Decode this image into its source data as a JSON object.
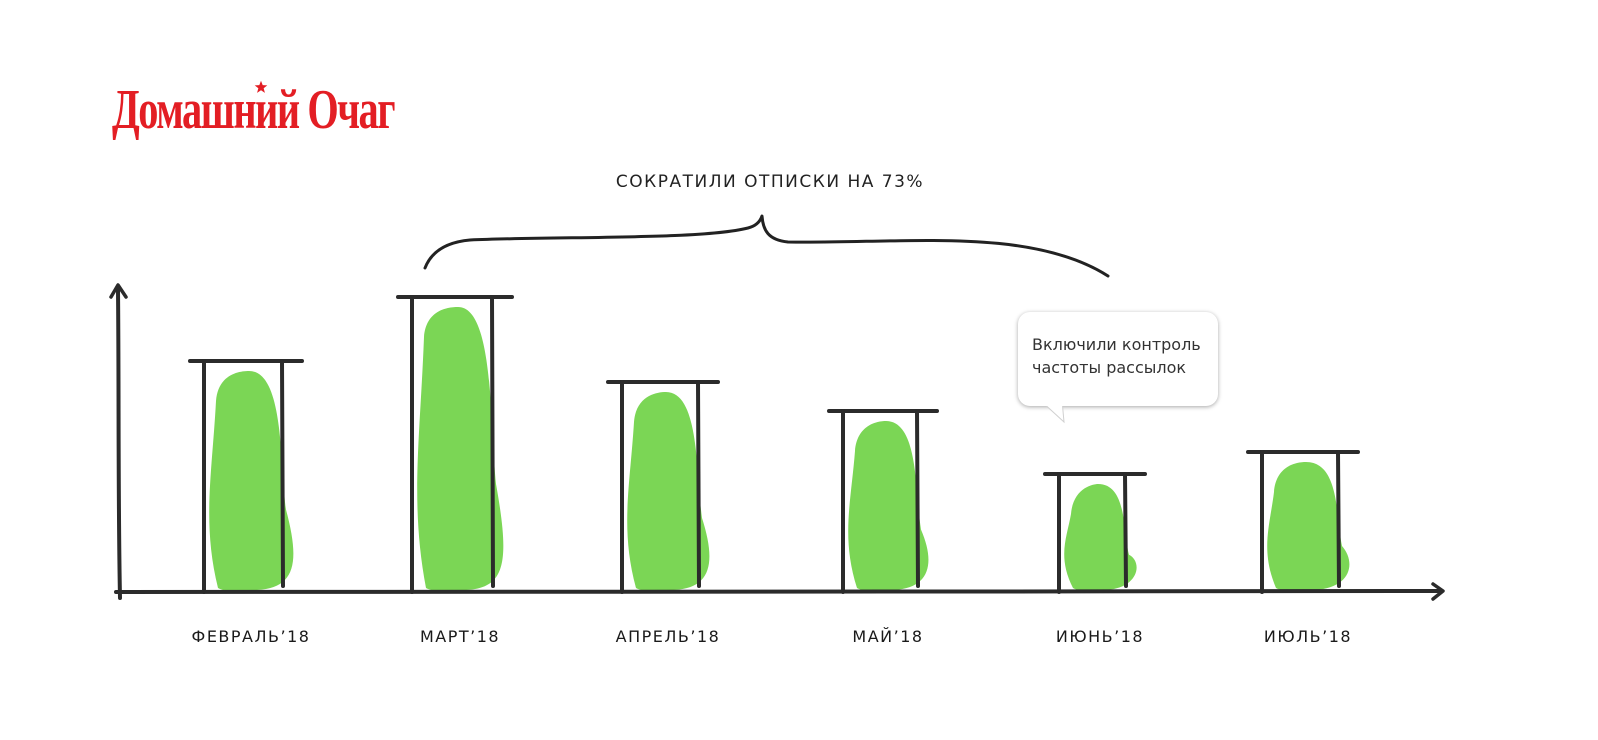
{
  "brand": {
    "logo_text": "Домашний Очаг",
    "logo_color": "#e31e24"
  },
  "annotation": {
    "title": "СОКРАТИЛИ ОТПИСКИ НА 73%",
    "callout_line1": "Включили контроль",
    "callout_line2": "частоты рассылок"
  },
  "chart_data": {
    "type": "bar",
    "categories": [
      "ФЕВРАЛЬ’18",
      "МАРТ’18",
      "АПРЕЛЬ’18",
      "МАЙ’18",
      "ИЮНЬ’18",
      "ИЮЛЬ’18"
    ],
    "values": [
      231,
      295,
      210,
      181,
      118,
      140
    ],
    "title": "",
    "xlabel": "",
    "ylabel": "",
    "ylim": [
      0,
      310
    ],
    "grid": false,
    "legend": "none",
    "colors": {
      "fill": "#7bd655",
      "frame": "#2b2b2b"
    }
  }
}
